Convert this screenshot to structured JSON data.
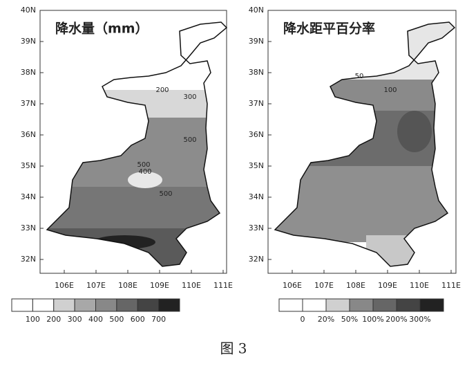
{
  "figure": {
    "panels": [
      {
        "title": "降水量（mm）",
        "lat_labels": [
          "40N",
          "39N",
          "38N",
          "37N",
          "36N",
          "35N",
          "34N",
          "33N",
          "32N"
        ],
        "lon_labels": [
          "106E",
          "107E",
          "108E",
          "109E",
          "110E",
          "111E"
        ],
        "contour_labels": [
          "200",
          "300",
          "500",
          "400",
          "500",
          "500"
        ],
        "colorbar_labels": [
          "100",
          "200",
          "300",
          "400",
          "500",
          "600",
          "700"
        ]
      },
      {
        "title": "降水距平百分率",
        "lat_labels": [
          "40N",
          "39N",
          "38N",
          "37N",
          "36N",
          "35N",
          "34N",
          "33N",
          "32N"
        ],
        "lon_labels": [
          "106E",
          "107E",
          "108E",
          "109E",
          "110E",
          "111E"
        ],
        "contour_labels": [
          "100",
          "50"
        ],
        "colorbar_labels": [
          "0",
          "20%",
          "50%",
          "100%",
          "200%",
          "300%"
        ]
      }
    ],
    "caption": "图 3"
  }
}
